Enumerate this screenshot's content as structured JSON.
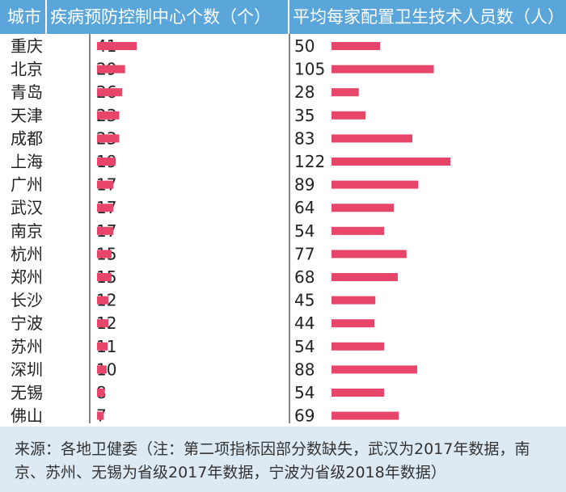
{
  "header": {
    "col_city": "城市",
    "col_cdc": "疾病预防控制中心个数（个）",
    "col_staff": "平均每家配置卫生技术人员数（人）"
  },
  "chart_data": {
    "type": "bar",
    "orientation": "horizontal",
    "bar_color": "#e8456a",
    "header_color": "#5aa6da",
    "footer_color": "#ddeaf4",
    "categories": [
      "重庆",
      "北京",
      "青岛",
      "天津",
      "成都",
      "上海",
      "广州",
      "武汉",
      "南京",
      "杭州",
      "郑州",
      "长沙",
      "宁波",
      "苏州",
      "深圳",
      "无锡",
      "佛山"
    ],
    "series": [
      {
        "name": "疾病预防控制中心个数（个）",
        "values": [
          41,
          29,
          26,
          23,
          23,
          19,
          17,
          17,
          17,
          15,
          15,
          12,
          12,
          11,
          10,
          8,
          7
        ]
      },
      {
        "name": "平均每家配置卫生技术人员数（人）",
        "values": [
          50,
          105,
          28,
          35,
          83,
          122,
          89,
          64,
          54,
          77,
          68,
          45,
          44,
          54,
          88,
          54,
          69
        ]
      }
    ]
  },
  "footer": {
    "source": "来源：各地卫健委（注：第二项指标因部分数缺失，武汉为2017年数据，南京、苏州、无锡为省级2017年数据，宁波为省级2018年数据）"
  }
}
